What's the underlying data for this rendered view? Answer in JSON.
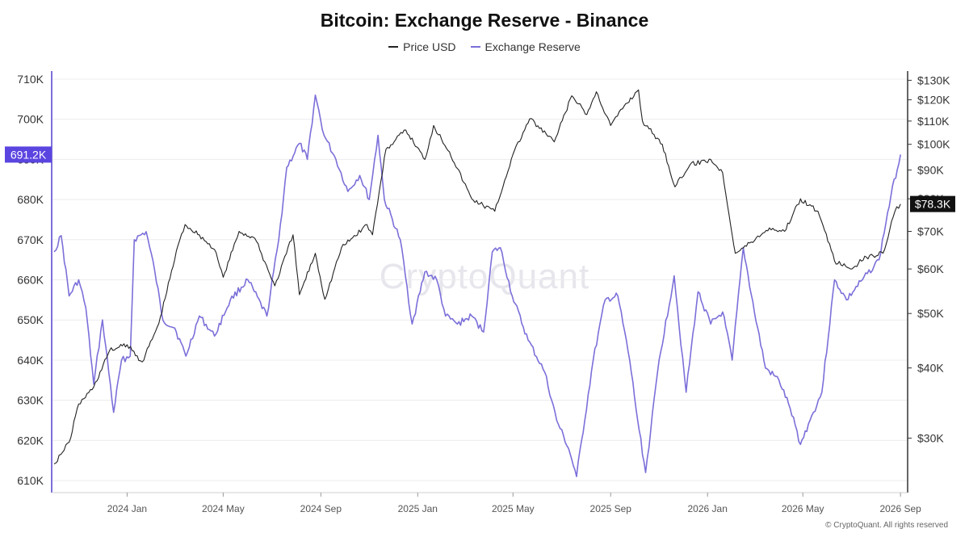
{
  "chart_data": {
    "type": "line",
    "title": "Bitcoin: Exchange Reserve - Binance",
    "watermark": "CryptoQuant",
    "footer": "© CryptoQuant. All rights reserved",
    "series": [
      {
        "name": "Price USD",
        "color": "#222222",
        "axis": "right",
        "last_label": "$78.3K",
        "points": [
          [
            "2023-10-01",
            27000
          ],
          [
            "2023-10-20",
            29500
          ],
          [
            "2023-11-01",
            34500
          ],
          [
            "2023-11-20",
            37000
          ],
          [
            "2023-12-10",
            43000
          ],
          [
            "2024-01-01",
            44000
          ],
          [
            "2024-01-20",
            41000
          ],
          [
            "2024-02-10",
            48000
          ],
          [
            "2024-03-05",
            66000
          ],
          [
            "2024-03-14",
            72000
          ],
          [
            "2024-04-01",
            69000
          ],
          [
            "2024-04-20",
            65000
          ],
          [
            "2024-05-01",
            58000
          ],
          [
            "2024-05-21",
            70000
          ],
          [
            "2024-06-10",
            68000
          ],
          [
            "2024-07-05",
            56000
          ],
          [
            "2024-07-28",
            69000
          ],
          [
            "2024-08-05",
            54000
          ],
          [
            "2024-08-25",
            64000
          ],
          [
            "2024-09-06",
            53000
          ],
          [
            "2024-09-27",
            65500
          ],
          [
            "2024-10-29",
            72000
          ],
          [
            "2024-11-05",
            69000
          ],
          [
            "2024-11-22",
            98000
          ],
          [
            "2024-12-17",
            106000
          ],
          [
            "2025-01-10",
            94000
          ],
          [
            "2025-01-21",
            108000
          ],
          [
            "2025-02-10",
            97000
          ],
          [
            "2025-03-10",
            80000
          ],
          [
            "2025-04-08",
            76000
          ],
          [
            "2025-05-01",
            96000
          ],
          [
            "2025-05-22",
            111000
          ],
          [
            "2025-06-22",
            101000
          ],
          [
            "2025-07-14",
            122000
          ],
          [
            "2025-08-02",
            113000
          ],
          [
            "2025-08-14",
            124000
          ],
          [
            "2025-09-01",
            108000
          ],
          [
            "2025-09-18",
            117000
          ],
          [
            "2025-10-06",
            125000
          ],
          [
            "2025-10-11",
            110000
          ],
          [
            "2025-11-05",
            100000
          ],
          [
            "2025-11-21",
            84000
          ],
          [
            "2025-12-10",
            92000
          ],
          [
            "2026-01-05",
            94000
          ],
          [
            "2026-01-20",
            89000
          ],
          [
            "2026-02-05",
            64000
          ],
          [
            "2026-02-25",
            67000
          ],
          [
            "2026-03-20",
            71000
          ],
          [
            "2026-04-08",
            70000
          ],
          [
            "2026-04-28",
            80000
          ],
          [
            "2026-05-20",
            76000
          ],
          [
            "2026-06-10",
            62000
          ],
          [
            "2026-06-30",
            60000
          ],
          [
            "2026-07-20",
            63000
          ],
          [
            "2026-08-10",
            64000
          ],
          [
            "2026-08-25",
            76000
          ],
          [
            "2026-09-01",
            78300
          ]
        ]
      },
      {
        "name": "Exchange Reserve",
        "color": "#7b6fd9",
        "axis": "left",
        "last_label": "691.2K",
        "points": [
          [
            "2023-10-01",
            667000
          ],
          [
            "2023-10-10",
            671000
          ],
          [
            "2023-10-20",
            656000
          ],
          [
            "2023-11-01",
            660000
          ],
          [
            "2023-11-10",
            653000
          ],
          [
            "2023-11-20",
            634000
          ],
          [
            "2023-12-01",
            650000
          ],
          [
            "2023-12-15",
            627000
          ],
          [
            "2023-12-25",
            640000
          ],
          [
            "2024-01-05",
            641000
          ],
          [
            "2024-01-10",
            670000
          ],
          [
            "2024-01-25",
            672000
          ],
          [
            "2024-02-05",
            662000
          ],
          [
            "2024-02-15",
            650000
          ],
          [
            "2024-03-01",
            648000
          ],
          [
            "2024-03-15",
            641000
          ],
          [
            "2024-04-01",
            651000
          ],
          [
            "2024-04-20",
            646000
          ],
          [
            "2024-05-10",
            655000
          ],
          [
            "2024-06-01",
            660000
          ],
          [
            "2024-06-25",
            651000
          ],
          [
            "2024-07-10",
            670000
          ],
          [
            "2024-07-20",
            688000
          ],
          [
            "2024-08-05",
            694000
          ],
          [
            "2024-08-15",
            690000
          ],
          [
            "2024-08-25",
            706000
          ],
          [
            "2024-09-05",
            696000
          ],
          [
            "2024-09-20",
            690000
          ],
          [
            "2024-10-05",
            682000
          ],
          [
            "2024-10-20",
            686000
          ],
          [
            "2024-11-01",
            680000
          ],
          [
            "2024-11-12",
            696000
          ],
          [
            "2024-11-20",
            680000
          ],
          [
            "2024-12-10",
            670000
          ],
          [
            "2024-12-25",
            649000
          ],
          [
            "2025-01-10",
            662000
          ],
          [
            "2025-01-25",
            660000
          ],
          [
            "2025-02-05",
            651000
          ],
          [
            "2025-02-20",
            649000
          ],
          [
            "2025-03-10",
            651000
          ],
          [
            "2025-03-25",
            647000
          ],
          [
            "2025-04-05",
            667000
          ],
          [
            "2025-04-15",
            668000
          ],
          [
            "2025-04-30",
            656000
          ],
          [
            "2025-05-20",
            645000
          ],
          [
            "2025-06-10",
            637000
          ],
          [
            "2025-06-25",
            625000
          ],
          [
            "2025-07-10",
            618000
          ],
          [
            "2025-07-20",
            611000
          ],
          [
            "2025-08-10",
            640000
          ],
          [
            "2025-08-25",
            655000
          ],
          [
            "2025-09-10",
            656000
          ],
          [
            "2025-09-25",
            640000
          ],
          [
            "2025-10-05",
            625000
          ],
          [
            "2025-10-15",
            612000
          ],
          [
            "2025-11-01",
            640000
          ],
          [
            "2025-11-20",
            661000
          ],
          [
            "2025-12-05",
            632000
          ],
          [
            "2025-12-20",
            657000
          ],
          [
            "2026-01-05",
            649000
          ],
          [
            "2026-01-20",
            652000
          ],
          [
            "2026-02-01",
            640000
          ],
          [
            "2026-02-15",
            668000
          ],
          [
            "2026-03-01",
            652000
          ],
          [
            "2026-03-15",
            638000
          ],
          [
            "2026-04-01",
            635000
          ],
          [
            "2026-04-15",
            628000
          ],
          [
            "2026-04-28",
            619000
          ],
          [
            "2026-05-10",
            625000
          ],
          [
            "2026-05-25",
            632000
          ],
          [
            "2026-06-10",
            660000
          ],
          [
            "2026-06-25",
            655000
          ],
          [
            "2026-07-15",
            660000
          ],
          [
            "2026-08-05",
            665000
          ],
          [
            "2026-08-20",
            681000
          ],
          [
            "2026-09-01",
            691200
          ]
        ]
      }
    ],
    "left_axis": {
      "ylim": [
        607000,
        712000
      ],
      "ticks": [
        [
          710000,
          "710K"
        ],
        [
          700000,
          "700K"
        ],
        [
          690000,
          "690K"
        ],
        [
          680000,
          "680K"
        ],
        [
          670000,
          "670K"
        ],
        [
          660000,
          "660K"
        ],
        [
          650000,
          "650K"
        ],
        [
          640000,
          "640K"
        ],
        [
          630000,
          "630K"
        ],
        [
          620000,
          "620K"
        ],
        [
          610000,
          "610K"
        ]
      ]
    },
    "right_axis": {
      "scale": "log",
      "ylim": [
        24000,
        135000
      ],
      "ticks": [
        [
          130000,
          "$130K"
        ],
        [
          120000,
          "$120K"
        ],
        [
          110000,
          "$110K"
        ],
        [
          100000,
          "$100K"
        ],
        [
          90000,
          "$90K"
        ],
        [
          80000,
          "$80K"
        ],
        [
          70000,
          "$70K"
        ],
        [
          60000,
          "$60K"
        ],
        [
          50000,
          "$50K"
        ],
        [
          40000,
          "$40K"
        ],
        [
          30000,
          "$30K"
        ]
      ]
    },
    "x_axis": {
      "xlim": [
        "2023-09-28",
        "2026-09-10"
      ],
      "ticks": [
        [
          "2024-01-01",
          "2024 Jan"
        ],
        [
          "2024-05-01",
          "2024 May"
        ],
        [
          "2024-09-01",
          "2024 Sep"
        ],
        [
          "2025-01-01",
          "2025 Jan"
        ],
        [
          "2025-05-01",
          "2025 May"
        ],
        [
          "2025-09-01",
          "2025 Sep"
        ],
        [
          "2026-01-01",
          "2026 Jan"
        ],
        [
          "2026-05-01",
          "2026 May"
        ],
        [
          "2026-09-01",
          "2026 Sep"
        ]
      ]
    },
    "grid": true,
    "legend_position": "top-center"
  }
}
